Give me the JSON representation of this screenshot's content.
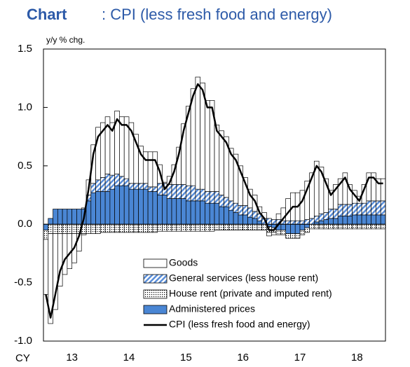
{
  "chart_data": {
    "type": "bar",
    "stacked": true,
    "chart_label": "Chart",
    "title": ": CPI (less fresh food and energy)",
    "title_color": "#2d5aa8",
    "y_label": "y/y % chg.",
    "x_label": "CY",
    "ylim": [
      -1.0,
      1.5
    ],
    "yticks": [
      {
        "value": -1.0,
        "label": "-1.0"
      },
      -0.5,
      {
        "value": 0,
        "label": "0.0"
      },
      0.5,
      {
        "value": 1.0,
        "label": "1.0"
      },
      1.5
    ],
    "categories": [
      null,
      null,
      null,
      null,
      null,
      null,
      "13",
      null,
      null,
      null,
      null,
      null,
      null,
      null,
      null,
      null,
      null,
      null,
      "14",
      null,
      null,
      null,
      null,
      null,
      null,
      null,
      null,
      null,
      null,
      null,
      "15",
      null,
      null,
      null,
      null,
      null,
      null,
      null,
      null,
      null,
      null,
      null,
      "16",
      null,
      null,
      null,
      null,
      null,
      null,
      null,
      null,
      null,
      null,
      null,
      "17",
      null,
      null,
      null,
      null,
      null,
      null,
      null,
      null,
      null,
      null,
      null,
      "18",
      null,
      null,
      null,
      null,
      null
    ],
    "series": [
      {
        "name": "Goods",
        "color": "#ffffff",
        "fill": "solid",
        "legend_order": 0,
        "values": [
          -0.47,
          -0.77,
          -0.65,
          -0.45,
          -0.35,
          -0.3,
          -0.25,
          -0.15,
          -0.01,
          0.13,
          0.33,
          0.45,
          0.47,
          0.49,
          0.45,
          0.54,
          0.51,
          0.53,
          0.52,
          0.42,
          0.32,
          0.27,
          0.3,
          0.3,
          0.16,
          0.01,
          0.07,
          0.17,
          0.32,
          0.52,
          0.68,
          0.83,
          0.96,
          0.91,
          0.78,
          0.78,
          0.57,
          0.55,
          0.52,
          0.45,
          0.42,
          0.34,
          0.24,
          0.16,
          0.14,
          0.06,
          0.05,
          -0.03,
          -0.02,
          0.05,
          0.11,
          0.19,
          0.24,
          0.24,
          0.26,
          0.33,
          0.39,
          0.47,
          0.4,
          0.29,
          0.16,
          0.21,
          0.22,
          0.27,
          0.17,
          0.11,
          0.06,
          0.16,
          0.24,
          0.24,
          0.19,
          0.19
        ]
      },
      {
        "name": "General services (less house rent)",
        "color": "#5b8fd9",
        "fill": "hatch",
        "legend_order": 1,
        "values": [
          0,
          0,
          0,
          0,
          0,
          0,
          0,
          0,
          0.01,
          0.05,
          0.08,
          0.1,
          0.12,
          0.15,
          0.12,
          0.1,
          0.08,
          0.06,
          0.05,
          0.05,
          0.05,
          0.05,
          0.04,
          0.04,
          0.1,
          0.1,
          0.12,
          0.12,
          0.12,
          0.12,
          0.13,
          0.13,
          0.1,
          0.1,
          0.1,
          0.1,
          0.1,
          0.1,
          0.08,
          0.08,
          0.08,
          0.08,
          0.08,
          0.08,
          0.06,
          0.06,
          0.05,
          0.05,
          0.04,
          0.04,
          0.03,
          0.03,
          0.03,
          0.03,
          0.03,
          0.04,
          0.05,
          0.05,
          0.06,
          0.06,
          0.08,
          0.08,
          0.1,
          0.1,
          0.1,
          0.1,
          0.1,
          0.1,
          0.12,
          0.12,
          0.12,
          0.12
        ]
      },
      {
        "name": "House rent (private and imputed rent)",
        "color": "#000000",
        "fill": "dots",
        "legend_order": 2,
        "values": [
          -0.08,
          -0.08,
          -0.08,
          -0.08,
          -0.08,
          -0.08,
          -0.08,
          -0.08,
          -0.08,
          -0.08,
          -0.08,
          -0.08,
          -0.07,
          -0.07,
          -0.07,
          -0.07,
          -0.07,
          -0.07,
          -0.07,
          -0.07,
          -0.07,
          -0.07,
          -0.07,
          -0.07,
          -0.06,
          -0.06,
          -0.06,
          -0.06,
          -0.06,
          -0.06,
          -0.06,
          -0.06,
          -0.06,
          -0.06,
          -0.06,
          -0.06,
          -0.05,
          -0.05,
          -0.05,
          -0.05,
          -0.05,
          -0.05,
          -0.05,
          -0.05,
          -0.05,
          -0.05,
          -0.05,
          -0.05,
          -0.04,
          -0.04,
          -0.04,
          -0.04,
          -0.04,
          -0.04,
          -0.04,
          -0.04,
          -0.04,
          -0.04,
          -0.04,
          -0.04,
          -0.04,
          -0.04,
          -0.04,
          -0.04,
          -0.04,
          -0.04,
          -0.04,
          -0.04,
          -0.04,
          -0.04,
          -0.04,
          -0.04
        ]
      },
      {
        "name": "Administered prices",
        "color": "#4a86d4",
        "fill": "solid",
        "legend_order": 3,
        "values": [
          -0.05,
          0.05,
          0.13,
          0.13,
          0.13,
          0.13,
          0.13,
          0.13,
          0.13,
          0.2,
          0.27,
          0.28,
          0.28,
          0.28,
          0.3,
          0.33,
          0.33,
          0.33,
          0.3,
          0.3,
          0.3,
          0.3,
          0.28,
          0.28,
          0.25,
          0.25,
          0.22,
          0.22,
          0.22,
          0.22,
          0.2,
          0.2,
          0.2,
          0.2,
          0.18,
          0.18,
          0.18,
          0.15,
          0.15,
          0.12,
          0.1,
          0.08,
          0.08,
          0.06,
          0.05,
          0.03,
          0,
          -0.02,
          -0.03,
          -0.05,
          -0.05,
          -0.08,
          -0.08,
          -0.08,
          -0.05,
          -0.03,
          0,
          0.02,
          0.03,
          0.04,
          0.05,
          0.05,
          0.07,
          0.07,
          0.07,
          0.08,
          0.08,
          0.08,
          0.08,
          0.08,
          0.08,
          0.08
        ]
      },
      {
        "name": "CPI (less fresh food and energy)",
        "color": "#000000",
        "type": "line",
        "legend_order": 4,
        "values": [
          -0.6,
          -0.8,
          -0.6,
          -0.4,
          -0.3,
          -0.25,
          -0.2,
          -0.1,
          0.05,
          0.3,
          0.6,
          0.75,
          0.8,
          0.85,
          0.8,
          0.9,
          0.85,
          0.85,
          0.8,
          0.7,
          0.6,
          0.55,
          0.55,
          0.55,
          0.45,
          0.3,
          0.35,
          0.45,
          0.6,
          0.8,
          0.95,
          1.1,
          1.2,
          1.15,
          1.0,
          1.0,
          0.8,
          0.75,
          0.7,
          0.6,
          0.55,
          0.45,
          0.35,
          0.25,
          0.2,
          0.1,
          0.05,
          -0.05,
          -0.05,
          0,
          0.05,
          0.1,
          0.15,
          0.15,
          0.2,
          0.3,
          0.4,
          0.5,
          0.45,
          0.35,
          0.25,
          0.3,
          0.35,
          0.4,
          0.3,
          0.25,
          0.2,
          0.3,
          0.4,
          0.4,
          0.35,
          0.35
        ]
      }
    ],
    "stack_order": [
      3,
      1,
      2,
      0
    ]
  }
}
